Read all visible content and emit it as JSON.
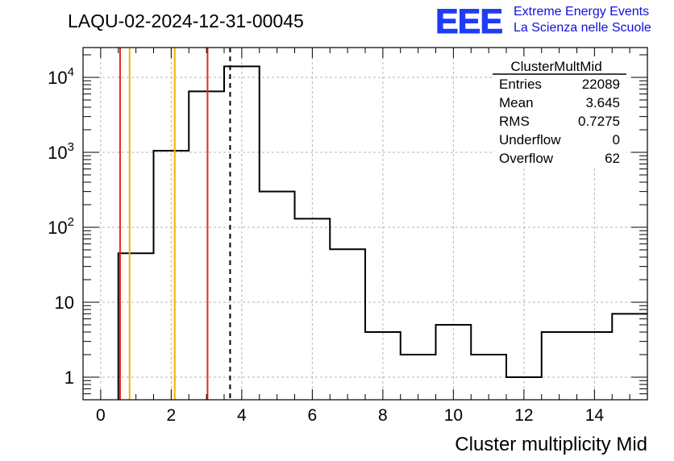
{
  "header": {
    "title": "LAQU-02-2024-12-31-00045",
    "logo_text": "EEE",
    "logo_line1": "Extreme Energy Events",
    "logo_line2": "La Scienza nelle Scuole"
  },
  "stats": {
    "name": "ClusterMultMid",
    "rows": [
      {
        "label": "Entries",
        "value": "22089"
      },
      {
        "label": "Mean",
        "value": "3.645"
      },
      {
        "label": "RMS",
        "value": "0.7275"
      },
      {
        "label": "Underflow",
        "value": "0"
      },
      {
        "label": "Overflow",
        "value": "62"
      }
    ]
  },
  "chart_data": {
    "type": "histogram",
    "title": "LAQU-02-2024-12-31-00045",
    "xlabel": "Cluster multiplicity Mid",
    "ylabel": "",
    "xlim": [
      -0.5,
      15.5
    ],
    "ylim": [
      0.5,
      25000
    ],
    "yscale": "log",
    "grid": true,
    "bin_edges": [
      0.5,
      1.5,
      2.5,
      3.5,
      4.5,
      5.5,
      6.5,
      7.5,
      8.5,
      9.5,
      10.5,
      11.5,
      12.5,
      13.5,
      14.5,
      15.5
    ],
    "counts": [
      45,
      1050,
      6500,
      14000,
      300,
      130,
      51,
      4,
      2,
      5,
      2,
      1,
      4,
      4,
      7
    ],
    "x_ticks": [
      "0",
      "2",
      "4",
      "6",
      "8",
      "10",
      "12",
      "14"
    ],
    "y_ticks": [
      {
        "value": 1,
        "base": "1",
        "exp": ""
      },
      {
        "value": 10,
        "base": "10",
        "exp": ""
      },
      {
        "value": 100,
        "base": "10",
        "exp": "2"
      },
      {
        "value": 1000,
        "base": "10",
        "exp": "3"
      },
      {
        "value": 10000,
        "base": "10",
        "exp": "4"
      }
    ],
    "vertical_lines": [
      {
        "x": 0.55,
        "color": "#e8251c",
        "style": "solid"
      },
      {
        "x": 0.82,
        "color": "#f5b400",
        "style": "solid"
      },
      {
        "x": 2.1,
        "color": "#f5b400",
        "style": "solid"
      },
      {
        "x": 3.03,
        "color": "#e8251c",
        "style": "solid"
      },
      {
        "x": 3.67,
        "color": "#000000",
        "style": "dashed"
      }
    ],
    "colors": {
      "histogram": "#000000",
      "logo": "#1f3cf5",
      "logo_text": "#1010e0",
      "grid": "#b4b4b4"
    }
  }
}
